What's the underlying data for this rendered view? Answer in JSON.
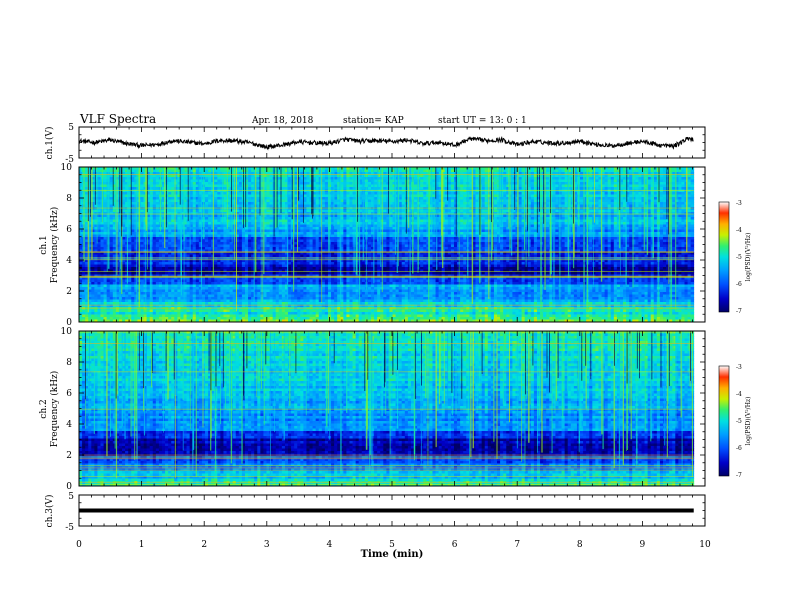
{
  "header": {
    "title": "VLF Spectra",
    "date": "Apr. 18, 2018",
    "station": "station= KAP",
    "start": "start  UT =   13: 0  : 1"
  },
  "chart_data": [
    {
      "type": "line",
      "panel": "ch1-waveform",
      "ylabel": "ch.1(V)",
      "ylim": [
        -5,
        5
      ],
      "ytick_labels": [
        "5",
        "-5"
      ],
      "xlim": [
        0,
        10
      ],
      "series": [
        {
          "x": [
            0,
            0.25,
            0.5,
            0.75,
            1.0,
            1.25,
            1.5,
            1.75,
            2.0,
            2.25,
            2.5,
            2.75,
            3.0,
            3.25,
            3.5,
            3.75,
            4.0,
            4.25,
            4.5,
            4.75,
            5.0,
            5.25,
            5.5,
            5.75,
            6.0,
            6.25,
            6.5,
            6.75,
            7.0,
            7.25,
            7.5,
            7.75,
            8.0,
            8.25,
            8.5,
            8.75,
            9.0,
            9.25,
            9.5,
            9.75,
            9.82
          ],
          "y": [
            0.5,
            0.0,
            0.8,
            -0.3,
            -1.0,
            -0.6,
            0.6,
            0.1,
            -0.4,
            0.7,
            0.5,
            -0.2,
            -1.5,
            -0.8,
            0.2,
            -0.1,
            -0.3,
            1.0,
            0.4,
            0.6,
            0.3,
            0.8,
            -0.4,
            0.1,
            -0.9,
            1.2,
            0.6,
            0.9,
            -0.7,
            0.3,
            -0.1,
            -0.2,
            0.5,
            -0.6,
            -1.1,
            -0.3,
            0.4,
            -0.8,
            -1.2,
            1.5,
            0.9
          ]
        }
      ]
    },
    {
      "type": "heatmap",
      "panel": "ch1-spectrogram",
      "ylabel": "ch.1",
      "ylabel2": "Frequency (kHz)",
      "ylim": [
        0,
        10
      ],
      "ytick_labels": [
        "0",
        "2",
        "4",
        "6",
        "8",
        "10"
      ],
      "xlim": [
        0,
        10
      ],
      "colorbar": {
        "label": "log(PSD)(V²/Hz)",
        "range": [
          -7,
          -3
        ],
        "tick_labels": [
          "-3",
          "-4",
          "-5",
          "-6",
          "-7"
        ]
      },
      "band_levels": {
        "freq_kHz": [
          0.25,
          0.75,
          1.25,
          1.75,
          2.25,
          2.75,
          3.25,
          3.75,
          4.25,
          4.75,
          5.25,
          5.75,
          6.25,
          6.75,
          7.25,
          7.75,
          8.25,
          8.75,
          9.25,
          9.75
        ],
        "log_psd": [
          -4.6,
          -4.9,
          -5.2,
          -5.6,
          -5.5,
          -6.1,
          -6.6,
          -6.3,
          -6.2,
          -6.0,
          -6.1,
          -5.5,
          -5.3,
          -5.3,
          -5.2,
          -5.2,
          -5.1,
          -5.1,
          -5.1,
          -5.0
        ]
      }
    },
    {
      "type": "heatmap",
      "panel": "ch2-spectrogram",
      "ylabel": "ch.2",
      "ylabel2": "Frequency (kHz)",
      "ylim": [
        0,
        10
      ],
      "ytick_labels": [
        "0",
        "2",
        "4",
        "6",
        "8",
        "10"
      ],
      "xlim": [
        0,
        10
      ],
      "colorbar": {
        "label": "log(PSD)(V²/Hz)",
        "range": [
          -7,
          -3
        ],
        "tick_labels": [
          "-3",
          "-4",
          "-5",
          "-6",
          "-7"
        ]
      },
      "band_levels": {
        "freq_kHz": [
          0.25,
          0.75,
          1.25,
          1.75,
          2.25,
          2.75,
          3.25,
          3.75,
          4.25,
          4.75,
          5.25,
          5.75,
          6.25,
          6.75,
          7.25,
          7.75,
          8.25,
          8.75,
          9.25,
          9.75
        ],
        "log_psd": [
          -4.8,
          -5.3,
          -5.8,
          -6.0,
          -6.6,
          -6.6,
          -6.1,
          -5.5,
          -5.6,
          -5.6,
          -5.4,
          -5.3,
          -5.3,
          -5.2,
          -5.2,
          -5.1,
          -5.1,
          -5.0,
          -5.0,
          -4.9
        ]
      }
    },
    {
      "type": "line",
      "panel": "ch3-waveform",
      "ylabel": "ch.3(V)",
      "ylim": [
        -5,
        5
      ],
      "ytick_labels": [
        "5",
        "-5"
      ],
      "xlim": [
        0,
        10
      ],
      "xlabel": "Time  (min)",
      "xtick_labels": [
        "0",
        "1",
        "2",
        "3",
        "4",
        "5",
        "6",
        "7",
        "8",
        "9",
        "10"
      ],
      "series": [
        {
          "x": [
            0,
            9.82
          ],
          "y": [
            0,
            0
          ]
        }
      ]
    }
  ],
  "colors": {
    "colormap": [
      "#000066",
      "#0000c8",
      "#0050ff",
      "#00a0ff",
      "#00e0e0",
      "#30f070",
      "#c8f000",
      "#ffb000",
      "#ff3000",
      "#ffffff"
    ]
  }
}
